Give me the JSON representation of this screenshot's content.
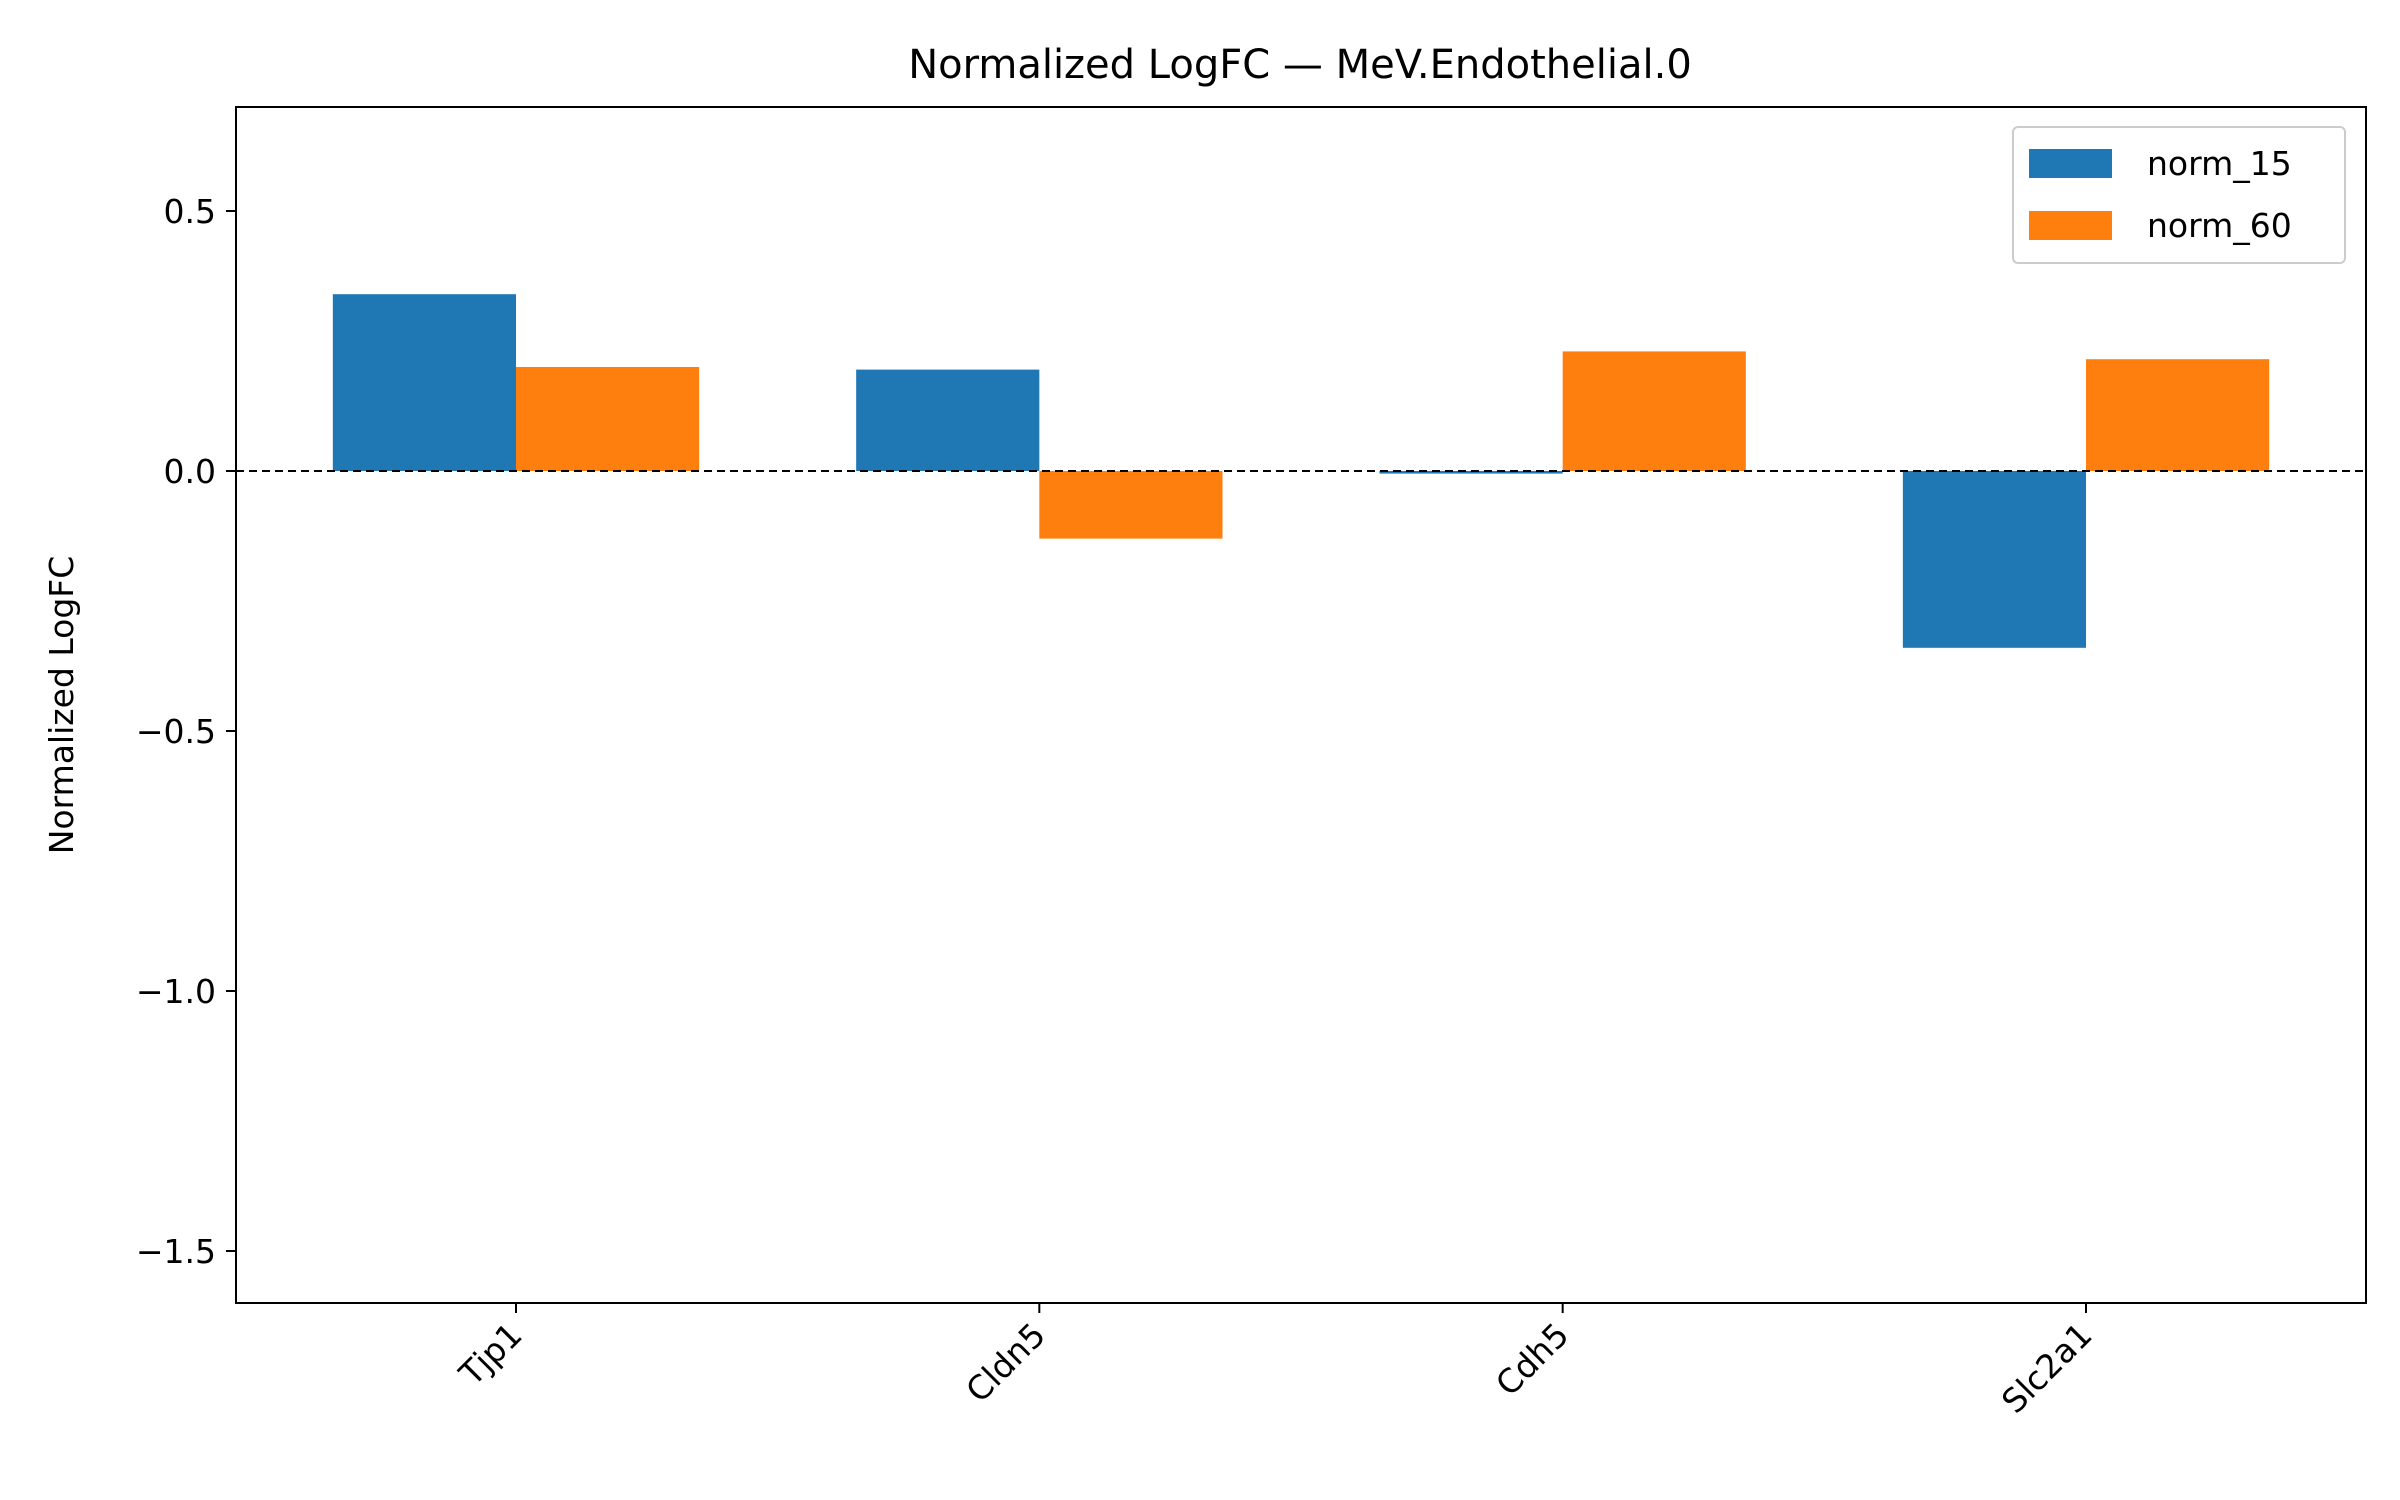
{
  "chart_data": {
    "type": "bar",
    "title": "Normalized LogFC — MeV.Endothelial.0",
    "xlabel": "",
    "ylabel": "Normalized LogFC",
    "categories": [
      "Tjp1",
      "Cldn5",
      "Cdh5",
      "Slc2a1"
    ],
    "series": [
      {
        "name": "norm_15",
        "color": "#1f77b4",
        "values": [
          0.34,
          0.195,
          -0.005,
          -0.34
        ]
      },
      {
        "name": "norm_60",
        "color": "#ff7f0e",
        "values": [
          0.2,
          -0.13,
          0.23,
          0.215
        ]
      }
    ],
    "ylim": [
      -1.6,
      0.7
    ],
    "yticks": [
      0.5,
      0.0,
      -0.5,
      -1.0,
      -1.5
    ],
    "ytick_labels": [
      "0.5",
      "0.0",
      "−0.5",
      "−1.0",
      "−1.5"
    ],
    "reference_line": {
      "y": 0,
      "style": "dashed",
      "color": "#000000"
    },
    "grid": false,
    "legend": "top-right"
  }
}
